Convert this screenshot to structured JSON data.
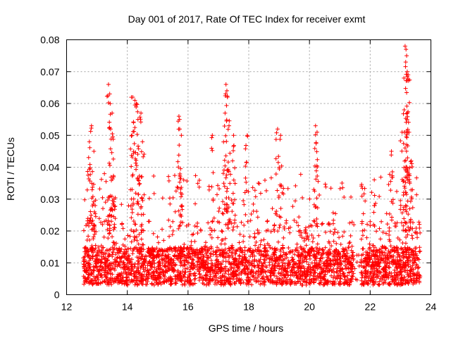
{
  "chart_data": {
    "type": "scatter",
    "title": "Day 001 of 2017, Rate Of TEC Index for receiver exmt",
    "xlabel": "GPS time / hours",
    "ylabel": "ROTI / TECUs",
    "xlim": [
      12,
      24
    ],
    "ylim": [
      0,
      0.08
    ],
    "x_ticks": [
      12,
      14,
      16,
      18,
      20,
      22,
      24
    ],
    "x_tick_labels": [
      "12",
      "14",
      "16",
      "18",
      "20",
      "22",
      "24"
    ],
    "y_ticks": [
      0,
      0.01,
      0.02,
      0.03,
      0.04,
      0.05,
      0.06,
      0.07,
      0.08
    ],
    "y_tick_labels": [
      "0",
      "0.01",
      "0.02",
      "0.03",
      "0.04",
      "0.05",
      "0.06",
      "0.07",
      "0.08"
    ],
    "grid": true,
    "marker": "+",
    "series": [
      {
        "name": "ROTI",
        "color": "#ff0000",
        "x_range": [
          12.55,
          23.65
        ],
        "gap": [
          21.45,
          21.7
        ],
        "typical_range": [
          0.003,
          0.02
        ],
        "spike_points": [
          [
            12.75,
            0.048
          ],
          [
            12.82,
            0.053
          ],
          [
            12.9,
            0.045
          ],
          [
            13.38,
            0.066
          ],
          [
            13.42,
            0.063
          ],
          [
            13.5,
            0.057
          ],
          [
            13.45,
            0.052
          ],
          [
            13.55,
            0.037
          ],
          [
            14.18,
            0.062
          ],
          [
            14.25,
            0.061
          ],
          [
            14.3,
            0.06
          ],
          [
            14.45,
            0.057
          ],
          [
            14.35,
            0.055
          ],
          [
            14.15,
            0.05
          ],
          [
            14.5,
            0.048
          ],
          [
            15.7,
            0.056
          ],
          [
            15.72,
            0.055
          ],
          [
            15.78,
            0.05
          ],
          [
            16.8,
            0.05
          ],
          [
            17.25,
            0.066
          ],
          [
            17.28,
            0.064
          ],
          [
            17.3,
            0.062
          ],
          [
            17.22,
            0.057
          ],
          [
            17.35,
            0.053
          ],
          [
            17.5,
            0.05
          ],
          [
            17.95,
            0.05
          ],
          [
            18.95,
            0.052
          ],
          [
            19.05,
            0.05
          ],
          [
            20.2,
            0.053
          ],
          [
            20.25,
            0.051
          ],
          [
            22.7,
            0.045
          ],
          [
            23.05,
            0.051
          ],
          [
            23.15,
            0.078
          ],
          [
            23.18,
            0.077
          ],
          [
            23.2,
            0.075
          ],
          [
            23.17,
            0.073
          ],
          [
            23.22,
            0.07
          ],
          [
            23.25,
            0.069
          ],
          [
            23.12,
            0.058
          ],
          [
            23.28,
            0.051
          ],
          [
            23.35,
            0.042
          ]
        ]
      }
    ]
  }
}
